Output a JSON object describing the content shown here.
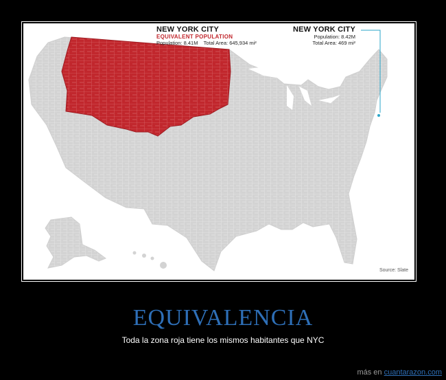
{
  "map": {
    "colors": {
      "region": "#c1272d",
      "land": "#d3d3d3",
      "border": "#ffffff",
      "leader": "#c1272d",
      "leader_right": "#2aa6c9",
      "water": "#ffffff"
    },
    "red_region": {
      "title": "NEW YORK CITY",
      "subtitle": "EQUIVALENT POPULATION",
      "population": "Population: 8.41M",
      "area": "Total Area: 645,934 mi²"
    },
    "nyc": {
      "title": "NEW YORK CITY",
      "population": "Population: 8.42M",
      "area": "Total Area: 469 mi²"
    },
    "source": "Source: Slate"
  },
  "caption": {
    "title": "EQUIVALENCIA",
    "subtitle": "Toda la zona roja tiene los mismos habitantes que NYC"
  },
  "footer": {
    "prefix": "más en",
    "site": "cuantarazon.com"
  }
}
